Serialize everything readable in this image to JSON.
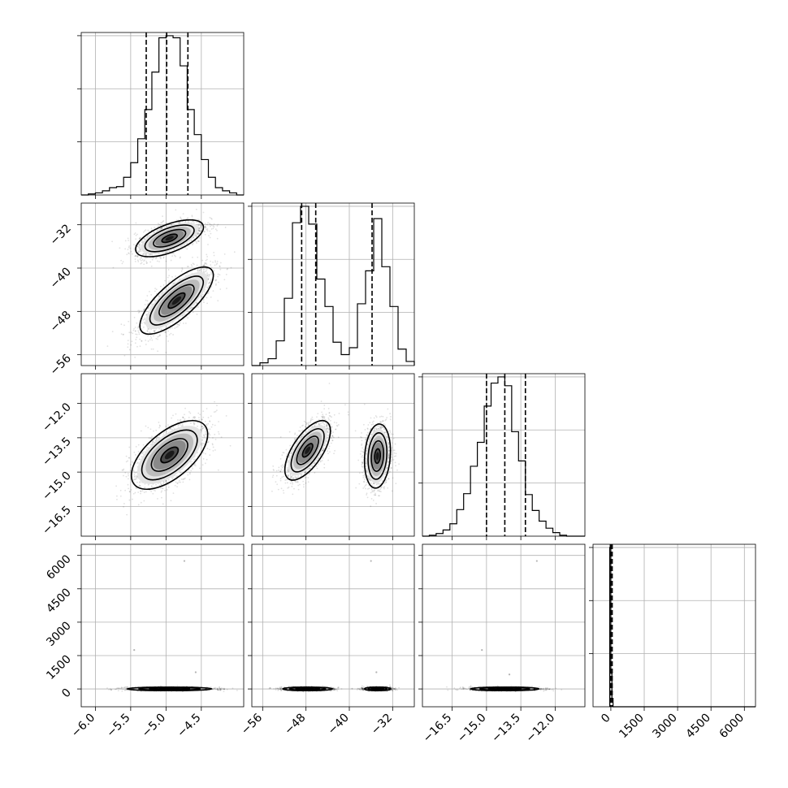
{
  "chart_data": {
    "type": "corner",
    "grid": true,
    "quantile_line_style": "dashed",
    "parameters": [
      {
        "range": [
          -6.2,
          -3.9
        ],
        "ticks": [
          -6.0,
          -5.5,
          -5.0,
          -4.5
        ],
        "tick_labels": [
          "−6.0",
          "−5.5",
          "−5.0",
          "−4.5"
        ],
        "quantiles": [
          -5.28,
          -4.99,
          -4.69
        ]
      },
      {
        "range": [
          -58,
          -28
        ],
        "ticks": [
          -56,
          -48,
          -40,
          -32
        ],
        "tick_labels": [
          "−56",
          "−48",
          "−40",
          "−32"
        ],
        "quantiles": [
          -48.8,
          -46.2,
          -35.8
        ]
      },
      {
        "range": [
          -17.8,
          -10.7
        ],
        "ticks": [
          -16.5,
          -15.0,
          -13.5,
          -12.0
        ],
        "tick_labels": [
          "−16.5",
          "−15.0",
          "−13.5",
          "−12.0"
        ],
        "quantiles": [
          -15.0,
          -14.2,
          -13.3
        ]
      },
      {
        "range": [
          -800,
          6500
        ],
        "ticks": [
          0,
          1500,
          3000,
          4500,
          6000
        ],
        "tick_labels": [
          "0",
          "1500",
          "3000",
          "4500",
          "6000"
        ],
        "quantiles": [
          -20,
          5,
          60
        ]
      }
    ],
    "histograms": [
      {
        "param": 0,
        "bin_edges": [
          -6.2,
          -6.1,
          -6.0,
          -5.9,
          -5.8,
          -5.7,
          -5.6,
          -5.5,
          -5.4,
          -5.3,
          -5.2,
          -5.1,
          -5.0,
          -4.9,
          -4.8,
          -4.7,
          -4.6,
          -4.5,
          -4.4,
          -4.3,
          -4.2,
          -4.1,
          -4.0,
          -3.9
        ],
        "counts": [
          0,
          1,
          2,
          4,
          7,
          8,
          17,
          31,
          54,
          82,
          118,
          151,
          153,
          151,
          124,
          82,
          58,
          34,
          17,
          7,
          4,
          2,
          0
        ]
      },
      {
        "param": 1,
        "bin_edges": [
          -58,
          -56.5,
          -55,
          -53.5,
          -52,
          -50.5,
          -49,
          -47.5,
          -46,
          -44.5,
          -43,
          -41.5,
          -40,
          -38.5,
          -37,
          -35.5,
          -34,
          -32.5,
          -31,
          -29.5,
          -28
        ],
        "counts": [
          0,
          2,
          5,
          18,
          49,
          104,
          116,
          103,
          63,
          43,
          17,
          8,
          13,
          45,
          69,
          107,
          72,
          43,
          12,
          3
        ]
      },
      {
        "param": 2,
        "bin_edges": [
          -17.8,
          -17.5,
          -17.2,
          -16.9,
          -16.6,
          -16.3,
          -16.0,
          -15.7,
          -15.4,
          -15.1,
          -14.8,
          -14.5,
          -14.2,
          -13.9,
          -13.6,
          -13.3,
          -13.0,
          -12.7,
          -12.4,
          -12.1,
          -11.8,
          -11.5,
          -11.2,
          -10.9,
          -10.7
        ],
        "counts": [
          0,
          1,
          3,
          7,
          14,
          30,
          48,
          79,
          106,
          147,
          173,
          180,
          170,
          118,
          85,
          47,
          29,
          17,
          9,
          4,
          1,
          0,
          0,
          0
        ]
      },
      {
        "param": 3,
        "bin_edges": [
          -50,
          0,
          50,
          100,
          6500
        ],
        "counts": [
          95,
          20,
          5,
          0
        ]
      }
    ],
    "scatter_panels": [
      {
        "x": 0,
        "y": 1,
        "clusters": [
          {
            "center": [
              -4.85,
              -46.0
            ],
            "spread": [
              0.26,
              3.1
            ],
            "corr": 0.75
          },
          {
            "center": [
              -4.95,
              -34.5
            ],
            "spread": [
              0.24,
              1.7
            ],
            "corr": 0.6
          }
        ]
      },
      {
        "x": 0,
        "y": 2,
        "clusters": [
          {
            "center": [
              -4.95,
              -14.25
            ],
            "spread": [
              0.27,
              0.75
            ],
            "corr": 0.6
          }
        ]
      },
      {
        "x": 1,
        "y": 2,
        "clusters": [
          {
            "center": [
              -47.7,
              -14.05
            ],
            "spread": [
              2.1,
              0.65
            ],
            "corr": 0.65
          },
          {
            "center": [
              -34.8,
              -14.3
            ],
            "spread": [
              1.2,
              0.7
            ],
            "corr": 0.15
          }
        ]
      },
      {
        "x": 0,
        "y": 3,
        "clusters": [
          {
            "center": [
              -4.95,
              5
            ],
            "spread": [
              0.3,
              40
            ],
            "corr": 0.0
          }
        ]
      },
      {
        "x": 1,
        "y": 3,
        "clusters": [
          {
            "center": [
              -47.7,
              5
            ],
            "spread": [
              2.3,
              40
            ],
            "corr": 0.0
          },
          {
            "center": [
              -34.8,
              5
            ],
            "spread": [
              1.2,
              40
            ],
            "corr": 0.0
          }
        ]
      },
      {
        "x": 2,
        "y": 3,
        "clusters": [
          {
            "center": [
              -14.2,
              5
            ],
            "spread": [
              0.75,
              40
            ],
            "corr": 0.0
          }
        ]
      }
    ],
    "outliers": [
      {
        "x": 0,
        "y": 3,
        "points": [
          [
            -4.74,
            5750
          ],
          [
            -5.45,
            1750
          ],
          [
            -4.58,
            750
          ]
        ]
      },
      {
        "x": 1,
        "y": 3,
        "points": [
          [
            -36.0,
            5750
          ],
          [
            -35.0,
            750
          ]
        ]
      },
      {
        "x": 2,
        "y": 3,
        "points": [
          [
            -12.8,
            5750
          ],
          [
            -15.2,
            1750
          ],
          [
            -14.0,
            650
          ]
        ]
      }
    ]
  }
}
